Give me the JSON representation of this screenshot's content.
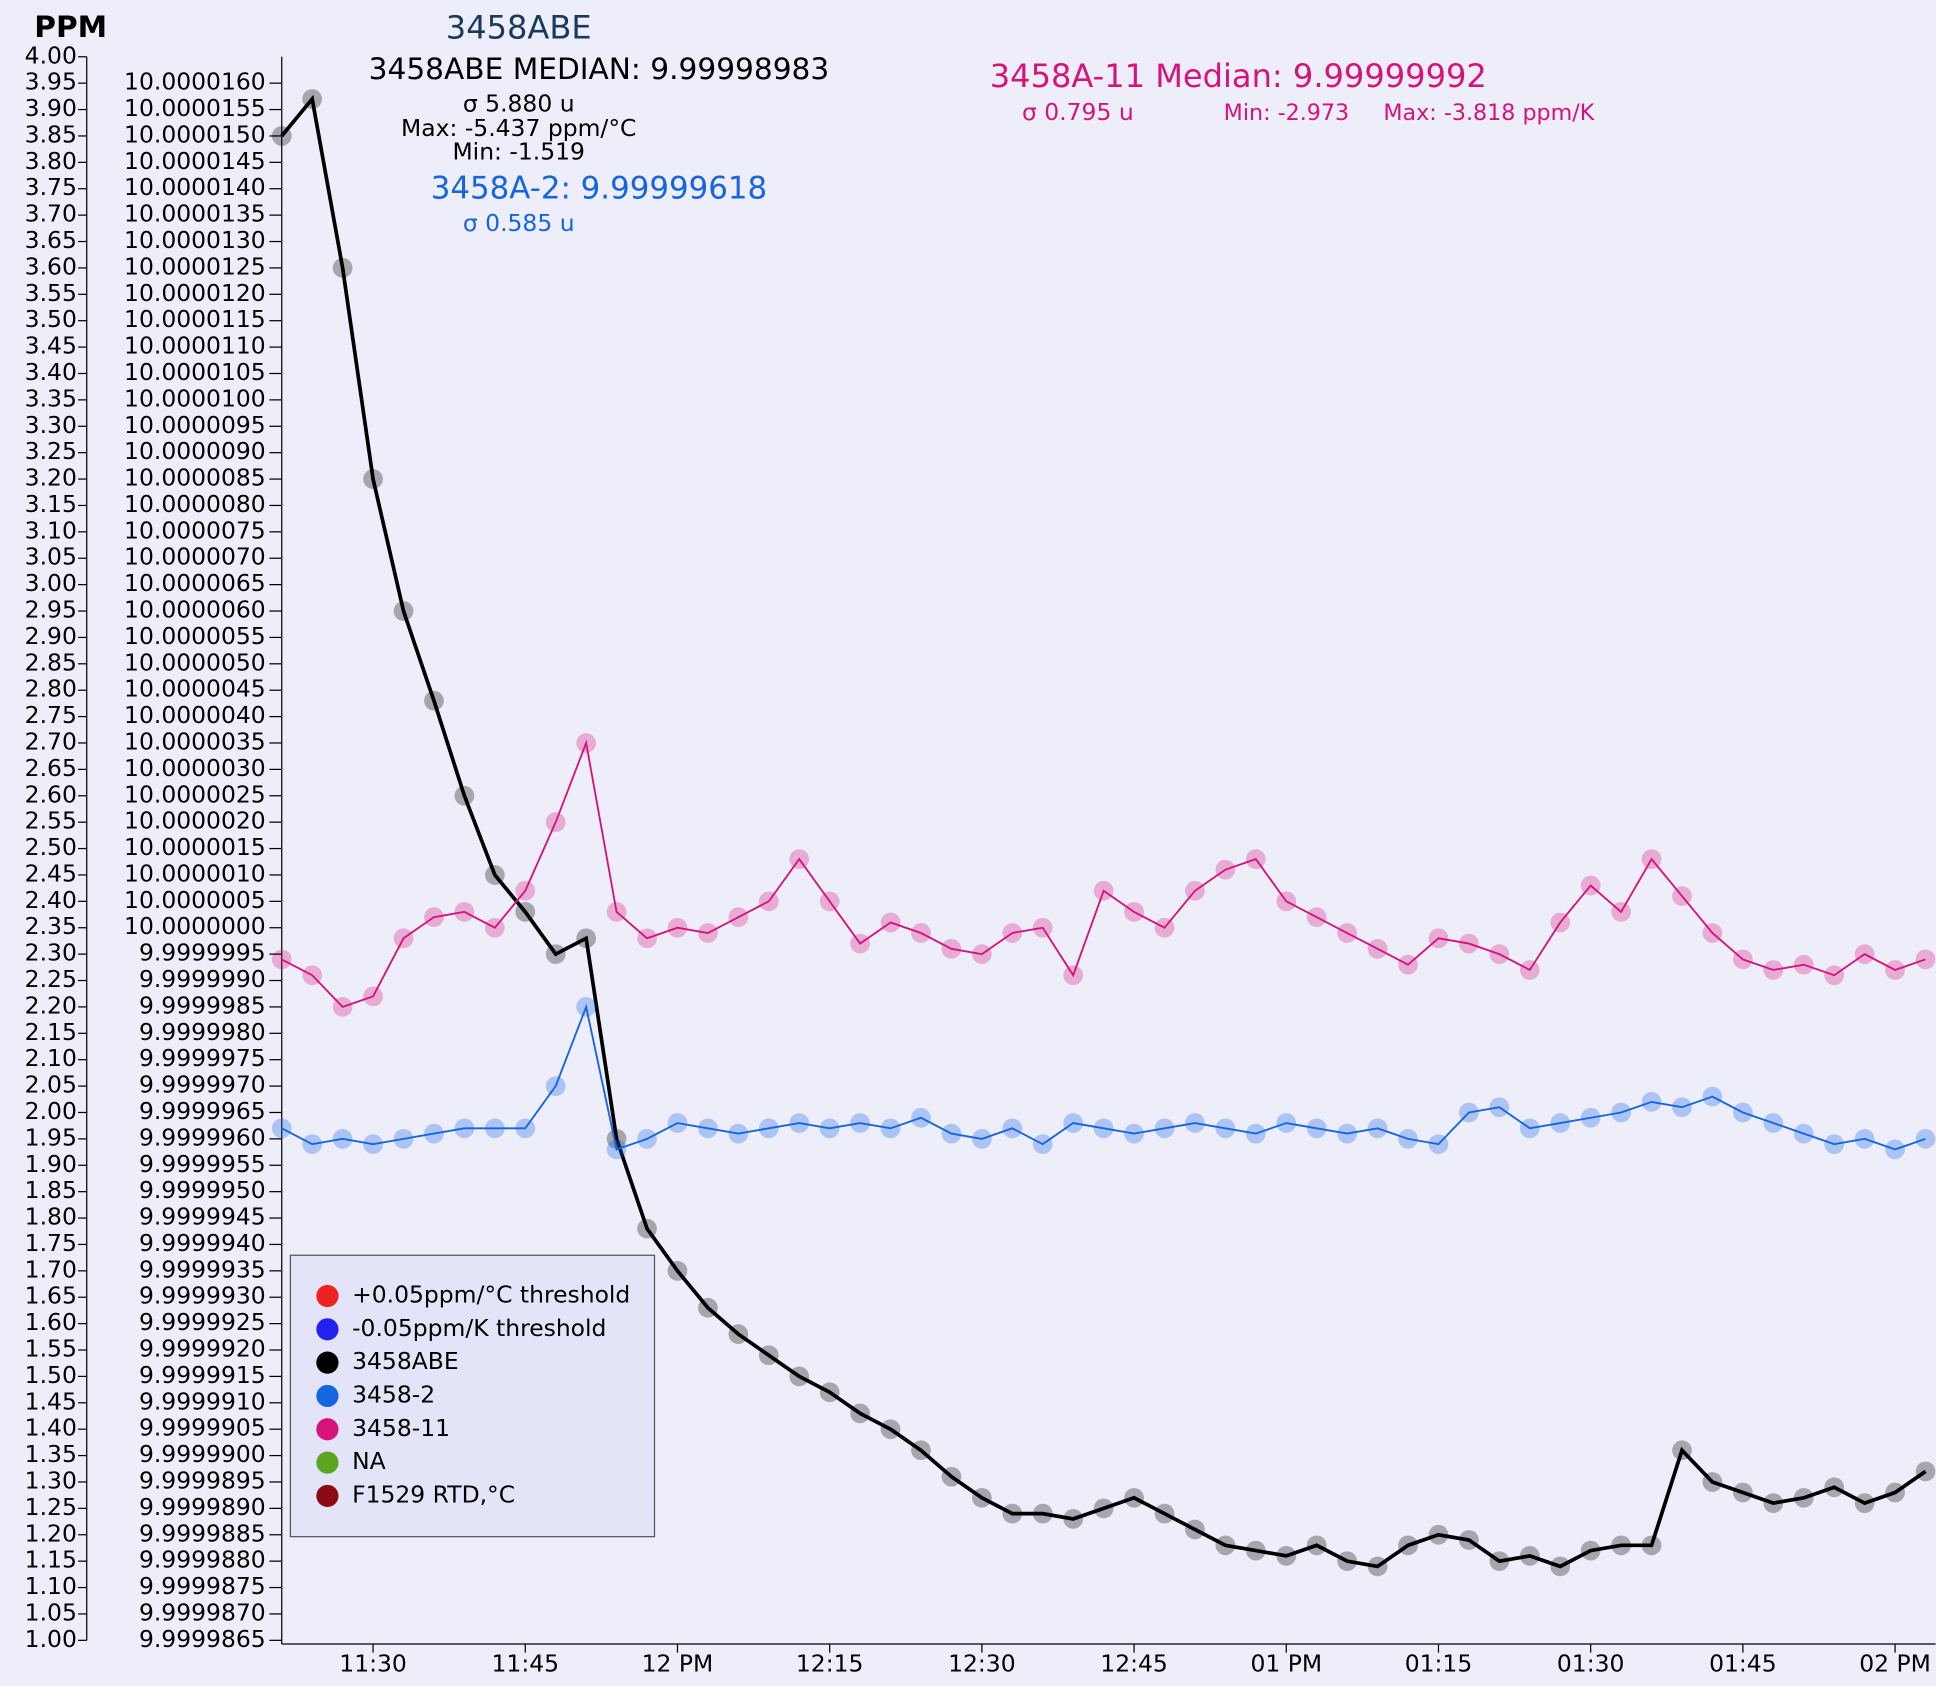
{
  "chart_data": {
    "type": "line",
    "title": "3458ABE",
    "y_label": "PPM",
    "annotations": [
      "3458ABE MEDIAN: 9.99998983",
      "σ 5.880 u",
      "Max: -5.437 ppm/°C",
      "Min: -1.519",
      "3458A-2: 9.99999618",
      "σ 0.585 u",
      "3458A-11 Median: 9.99999992",
      "σ 0.795 u",
      "Min: -2.973",
      "Max: -3.818 ppm/K"
    ],
    "x": [
      "11:21",
      "11:24",
      "11:27",
      "11:30",
      "11:33",
      "11:36",
      "11:39",
      "11:42",
      "11:45",
      "11:48",
      "11:51",
      "11:54",
      "11:57",
      "12:00",
      "12:03",
      "12:06",
      "12:09",
      "12:12",
      "12:15",
      "12:18",
      "12:21",
      "12:24",
      "12:27",
      "12:30",
      "12:33",
      "12:36",
      "12:39",
      "12:42",
      "12:45",
      "12:48",
      "12:51",
      "12:54",
      "12:57",
      "13:00",
      "13:03",
      "13:06",
      "13:09",
      "13:12",
      "13:15",
      "13:18",
      "13:21",
      "13:24",
      "13:27",
      "13:30",
      "13:33",
      "13:36",
      "13:39",
      "13:42",
      "13:45",
      "13:48",
      "13:51",
      "13:54",
      "13:57",
      "14:00",
      "14:03"
    ],
    "series": [
      {
        "color": "#000000",
        "values": [
          3.85,
          3.92,
          3.6,
          3.2,
          2.95,
          2.78,
          2.6,
          2.45,
          2.38,
          2.3,
          2.33,
          1.95,
          1.78,
          1.7,
          1.63,
          1.58,
          1.54,
          1.5,
          1.47,
          1.43,
          1.4,
          1.36,
          1.31,
          1.27,
          1.24,
          1.24,
          1.23,
          1.25,
          1.27,
          1.24,
          1.21,
          1.18,
          1.17,
          1.16,
          1.18,
          1.15,
          1.14,
          1.18,
          1.2,
          1.19,
          1.15,
          1.16,
          1.14,
          1.17,
          1.18,
          1.18,
          1.36,
          1.3,
          1.28,
          1.26,
          1.27,
          1.29,
          1.26,
          1.28,
          1.32
        ]
      },
      {
        "color": "#1565e0",
        "values": [
          1.97,
          1.94,
          1.95,
          1.94,
          1.95,
          1.96,
          1.97,
          1.97,
          1.97,
          2.05,
          2.2,
          1.93,
          1.95,
          1.98,
          1.97,
          1.96,
          1.97,
          1.98,
          1.97,
          1.98,
          1.97,
          1.99,
          1.96,
          1.95,
          1.97,
          1.94,
          1.98,
          1.97,
          1.96,
          1.97,
          1.98,
          1.97,
          1.96,
          1.98,
          1.97,
          1.96,
          1.97,
          1.95,
          1.94,
          2.0,
          2.01,
          1.97,
          1.98,
          1.99,
          2.0,
          2.02,
          2.01,
          2.03,
          2.0,
          1.98,
          1.96,
          1.94,
          1.95,
          1.93,
          1.95
        ]
      },
      {
        "color": "#d6137a",
        "values": [
          2.29,
          2.26,
          2.2,
          2.22,
          2.33,
          2.37,
          2.38,
          2.35,
          2.42,
          2.55,
          2.7,
          2.38,
          2.33,
          2.35,
          2.34,
          2.37,
          2.4,
          2.48,
          2.4,
          2.32,
          2.36,
          2.34,
          2.31,
          2.3,
          2.34,
          2.35,
          2.26,
          2.42,
          2.38,
          2.35,
          2.42,
          2.46,
          2.48,
          2.4,
          2.37,
          2.34,
          2.31,
          2.28,
          2.33,
          2.32,
          2.3,
          2.27,
          2.36,
          2.43,
          2.38,
          2.48,
          2.41,
          2.34,
          2.29,
          2.27,
          2.28,
          2.26,
          2.3,
          2.27,
          2.29
        ]
      }
    ],
    "legend": [
      {
        "name": "+0.05ppm/°C threshold",
        "color": "#ee2222"
      },
      {
        "name": "-0.05ppm/K threshold",
        "color": "#2222ee"
      },
      {
        "name": "3458ABE",
        "color": "#000000"
      },
      {
        "name": "3458-2",
        "color": "#1565e0"
      },
      {
        "name": "3458-11",
        "color": "#d6137a"
      },
      {
        "name": "NA",
        "color": "#5aa61e"
      },
      {
        "name": "F1529 RTD,°C",
        "color": "#8b0a14"
      }
    ],
    "xlim": [
      "11:21",
      "14:04"
    ],
    "xticks": [
      "11:30",
      "11:45",
      {
        "value": "12:00",
        "label": "12 PM"
      },
      "12:15",
      "12:30",
      "12:45",
      {
        "value": "13:00",
        "label": "01 PM"
      },
      {
        "value": "13:15",
        "label": "01:15"
      },
      {
        "value": "13:30",
        "label": "01:30"
      },
      {
        "value": "13:45",
        "label": "01:45"
      },
      {
        "value": "14:00",
        "label": "02 PM"
      }
    ],
    "ylim": [
      1,
      4
    ],
    "yticks": [
      {
        "value": 1,
        "label": "1.00"
      },
      1.05,
      {
        "value": 1.1,
        "label": "1.10"
      },
      1.15,
      {
        "value": 1.2,
        "label": "1.20"
      },
      1.25,
      {
        "value": 1.3,
        "label": "1.30"
      },
      1.35,
      {
        "value": 1.4,
        "label": "1.40"
      },
      1.45,
      {
        "value": 1.5,
        "label": "1.50"
      },
      1.55,
      {
        "value": 1.6,
        "label": "1.60"
      },
      1.65,
      {
        "value": 1.7,
        "label": "1.70"
      },
      1.75,
      {
        "value": 1.8,
        "label": "1.80"
      },
      1.85,
      {
        "value": 1.9,
        "label": "1.90"
      },
      1.95,
      {
        "value": 2,
        "label": "2.00"
      },
      2.05,
      {
        "value": 2.1,
        "label": "2.10"
      },
      2.15,
      {
        "value": 2.2,
        "label": "2.20"
      },
      2.25,
      {
        "value": 2.3,
        "label": "2.30"
      },
      2.35,
      {
        "value": 2.4,
        "label": "2.40"
      },
      2.45,
      {
        "value": 2.5,
        "label": "2.50"
      },
      2.55,
      {
        "value": 2.6,
        "label": "2.60"
      },
      2.65,
      {
        "value": 2.7,
        "label": "2.70"
      },
      2.75,
      {
        "value": 2.8,
        "label": "2.80"
      },
      2.85,
      {
        "value": 2.9,
        "label": "2.90"
      },
      2.95,
      {
        "value": 3,
        "label": "3.00"
      },
      3.05,
      {
        "value": 3.1,
        "label": "3.10"
      },
      3.15,
      {
        "value": 3.2,
        "label": "3.20"
      },
      3.25,
      {
        "value": 3.3,
        "label": "3.30"
      },
      3.35,
      {
        "value": 3.4,
        "label": "3.40"
      },
      3.45,
      {
        "value": 3.5,
        "label": "3.50"
      },
      3.55,
      {
        "value": 3.6,
        "label": "3.60"
      },
      3.65,
      {
        "value": 3.7,
        "label": "3.70"
      },
      3.75,
      {
        "value": 3.8,
        "label": "3.80"
      },
      3.85,
      {
        "value": 3.9,
        "label": "3.90"
      },
      3.95,
      {
        "value": 4,
        "label": "4.00"
      }
    ],
    "y2lim": [
      9.9999865,
      10.0000165
    ],
    "y2ticks": [
      9.9999865,
      {
        "value": 9.999987,
        "label": "9.9999870"
      },
      9.9999875,
      {
        "value": 9.999988,
        "label": "9.9999880"
      },
      9.9999885,
      {
        "value": 9.999989,
        "label": "9.9999890"
      },
      9.9999895,
      {
        "value": 9.99999,
        "label": "9.9999900"
      },
      9.9999905,
      {
        "value": 9.999991,
        "label": "9.9999910"
      },
      9.9999915,
      {
        "value": 9.999992,
        "label": "9.9999920"
      },
      9.9999925,
      {
        "value": 9.999993,
        "label": "9.9999930"
      },
      9.9999935,
      {
        "value": 9.999994,
        "label": "9.9999940"
      },
      9.9999945,
      {
        "value": 9.999995,
        "label": "9.9999950"
      },
      9.9999955,
      {
        "value": 9.999996,
        "label": "9.9999960"
      },
      9.9999965,
      {
        "value": 9.999997,
        "label": "9.9999970"
      },
      9.9999975,
      {
        "value": 9.999998,
        "label": "9.9999980"
      },
      9.9999985,
      {
        "value": 9.999999,
        "label": "9.9999990"
      },
      9.9999995,
      {
        "value": 10,
        "label": "10.0000000"
      },
      10.0000005,
      {
        "value": 10.000001,
        "label": "10.0000010"
      },
      10.0000015,
      {
        "value": 10.000002,
        "label": "10.0000020"
      },
      10.0000025,
      {
        "value": 10.000003,
        "label": "10.0000030"
      },
      10.0000035,
      {
        "value": 10.000004,
        "label": "10.0000040"
      },
      10.0000045,
      {
        "value": 10.000005,
        "label": "10.0000050"
      },
      10.0000055,
      {
        "value": 10.000006,
        "label": "10.0000060"
      },
      10.0000065,
      {
        "value": 10.000007,
        "label": "10.0000070"
      },
      10.0000075,
      {
        "value": 10.000008,
        "label": "10.0000080"
      },
      10.0000085,
      {
        "value": 10.000009,
        "label": "10.0000090"
      },
      10.0000095,
      {
        "value": 10.00001,
        "label": "10.0000100"
      },
      10.0000105,
      {
        "value": 10.000011,
        "label": "10.0000110"
      },
      10.0000115,
      {
        "value": 10.000012,
        "label": "10.0000120"
      },
      10.0000125,
      {
        "value": 10.000013,
        "label": "10.0000130"
      },
      10.0000135,
      {
        "value": 10.000014,
        "label": "10.0000140"
      },
      10.0000145,
      {
        "value": 10.000015,
        "label": "10.0000150"
      },
      10.0000155,
      {
        "value": 10.000016,
        "label": "10.0000160"
      }
    ]
  }
}
